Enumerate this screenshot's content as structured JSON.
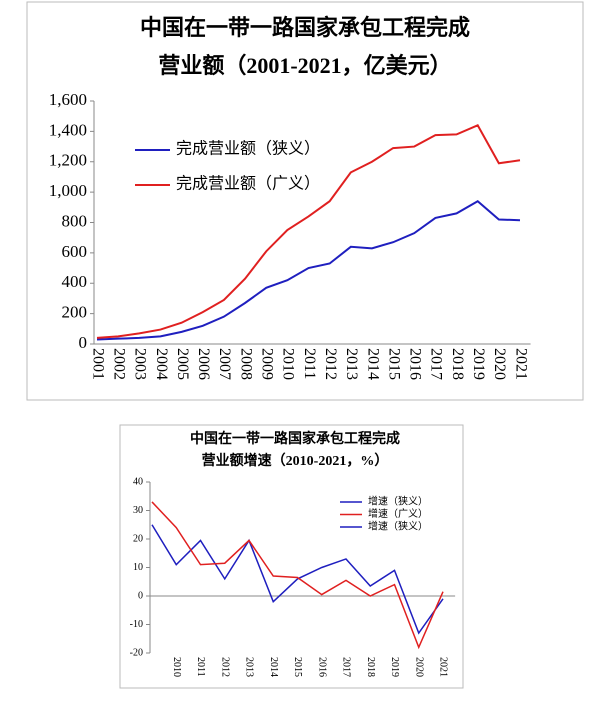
{
  "chart_data": [
    {
      "type": "line",
      "title": [
        "中国在一带一路国家承包工程完成",
        "营业额（2001-2021，亿美元）"
      ],
      "categories": [
        "2001",
        "2002",
        "2003",
        "2004",
        "2005",
        "2006",
        "2007",
        "2008",
        "2009",
        "2010",
        "2011",
        "2012",
        "2013",
        "2014",
        "2015",
        "2016",
        "2017",
        "2018",
        "2019",
        "2020",
        "2021"
      ],
      "series": [
        {
          "name": "完成营业额（狭义）",
          "color": "#1f1fbf",
          "values": [
            30,
            35,
            40,
            50,
            80,
            120,
            180,
            270,
            370,
            420,
            500,
            530,
            640,
            630,
            670,
            730,
            830,
            860,
            940,
            820,
            815
          ]
        },
        {
          "name": "完成营业额（广义）",
          "color": "#e02020",
          "values": [
            40,
            50,
            70,
            95,
            140,
            210,
            290,
            430,
            610,
            750,
            840,
            940,
            1130,
            1200,
            1290,
            1300,
            1375,
            1380,
            1440,
            1190,
            1210
          ]
        }
      ],
      "ylim": [
        0,
        1600
      ],
      "yticks": [
        0,
        200,
        400,
        600,
        800,
        {
          "value": 1000,
          "label": "1,000"
        },
        {
          "value": 1200,
          "label": "1,200"
        },
        {
          "value": 1400,
          "label": "1,400"
        },
        {
          "value": 1600,
          "label": "1,600"
        }
      ]
    },
    {
      "type": "line",
      "title": [
        "中国在一带一路国家承包工程完成",
        "营业额增速（2010-2021，%）"
      ],
      "categories": [
        null,
        "2010",
        "2011",
        "2012",
        "2013",
        "2014",
        "2015",
        "2016",
        "2017",
        "2018",
        "2019",
        "2020",
        "2021"
      ],
      "series": [
        {
          "name": "增速（狭义）",
          "color": "#1f1fbf",
          "values": [
            25,
            11,
            19.5,
            6,
            19.5,
            -2,
            6,
            10,
            13,
            3.5,
            9,
            -13,
            -1
          ]
        },
        {
          "name": "增速（广义）",
          "color": "#e02020",
          "values": [
            33,
            24,
            11,
            11.5,
            19.5,
            7,
            6.5,
            0.5,
            5.5,
            0,
            4,
            -18,
            1.5
          ]
        }
      ],
      "legend": [
        {
          "name": "增速（狭义）",
          "color": "#1f1fbf"
        }
      ],
      "ylim": [
        -20,
        40
      ],
      "yticks": [
        -20,
        -10,
        0,
        10,
        20,
        30,
        40
      ]
    }
  ]
}
